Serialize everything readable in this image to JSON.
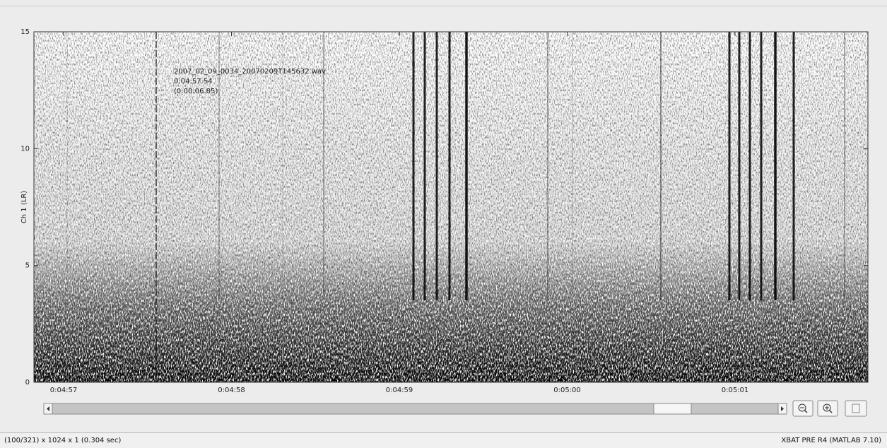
{
  "window": {
    "axis": {
      "ylabel": "Ch 1 (LR)",
      "ylim": [
        0,
        15
      ],
      "yticks": [
        0,
        5,
        10,
        15
      ],
      "xticks": [
        "0:04:57",
        "0:04:58",
        "0:04:59",
        "0:05:00",
        "0:05:01"
      ]
    },
    "annotation": [
      "2007_02_09_0034_20070209T145632.wav",
      "0:04:57.54",
      "(0:00:06.85)"
    ],
    "status": {
      "left": "(100/321) x 1024 x 1  (0.304 sec)",
      "right": "XBAT PRE R4  (MATLAB 7.10)"
    }
  }
}
